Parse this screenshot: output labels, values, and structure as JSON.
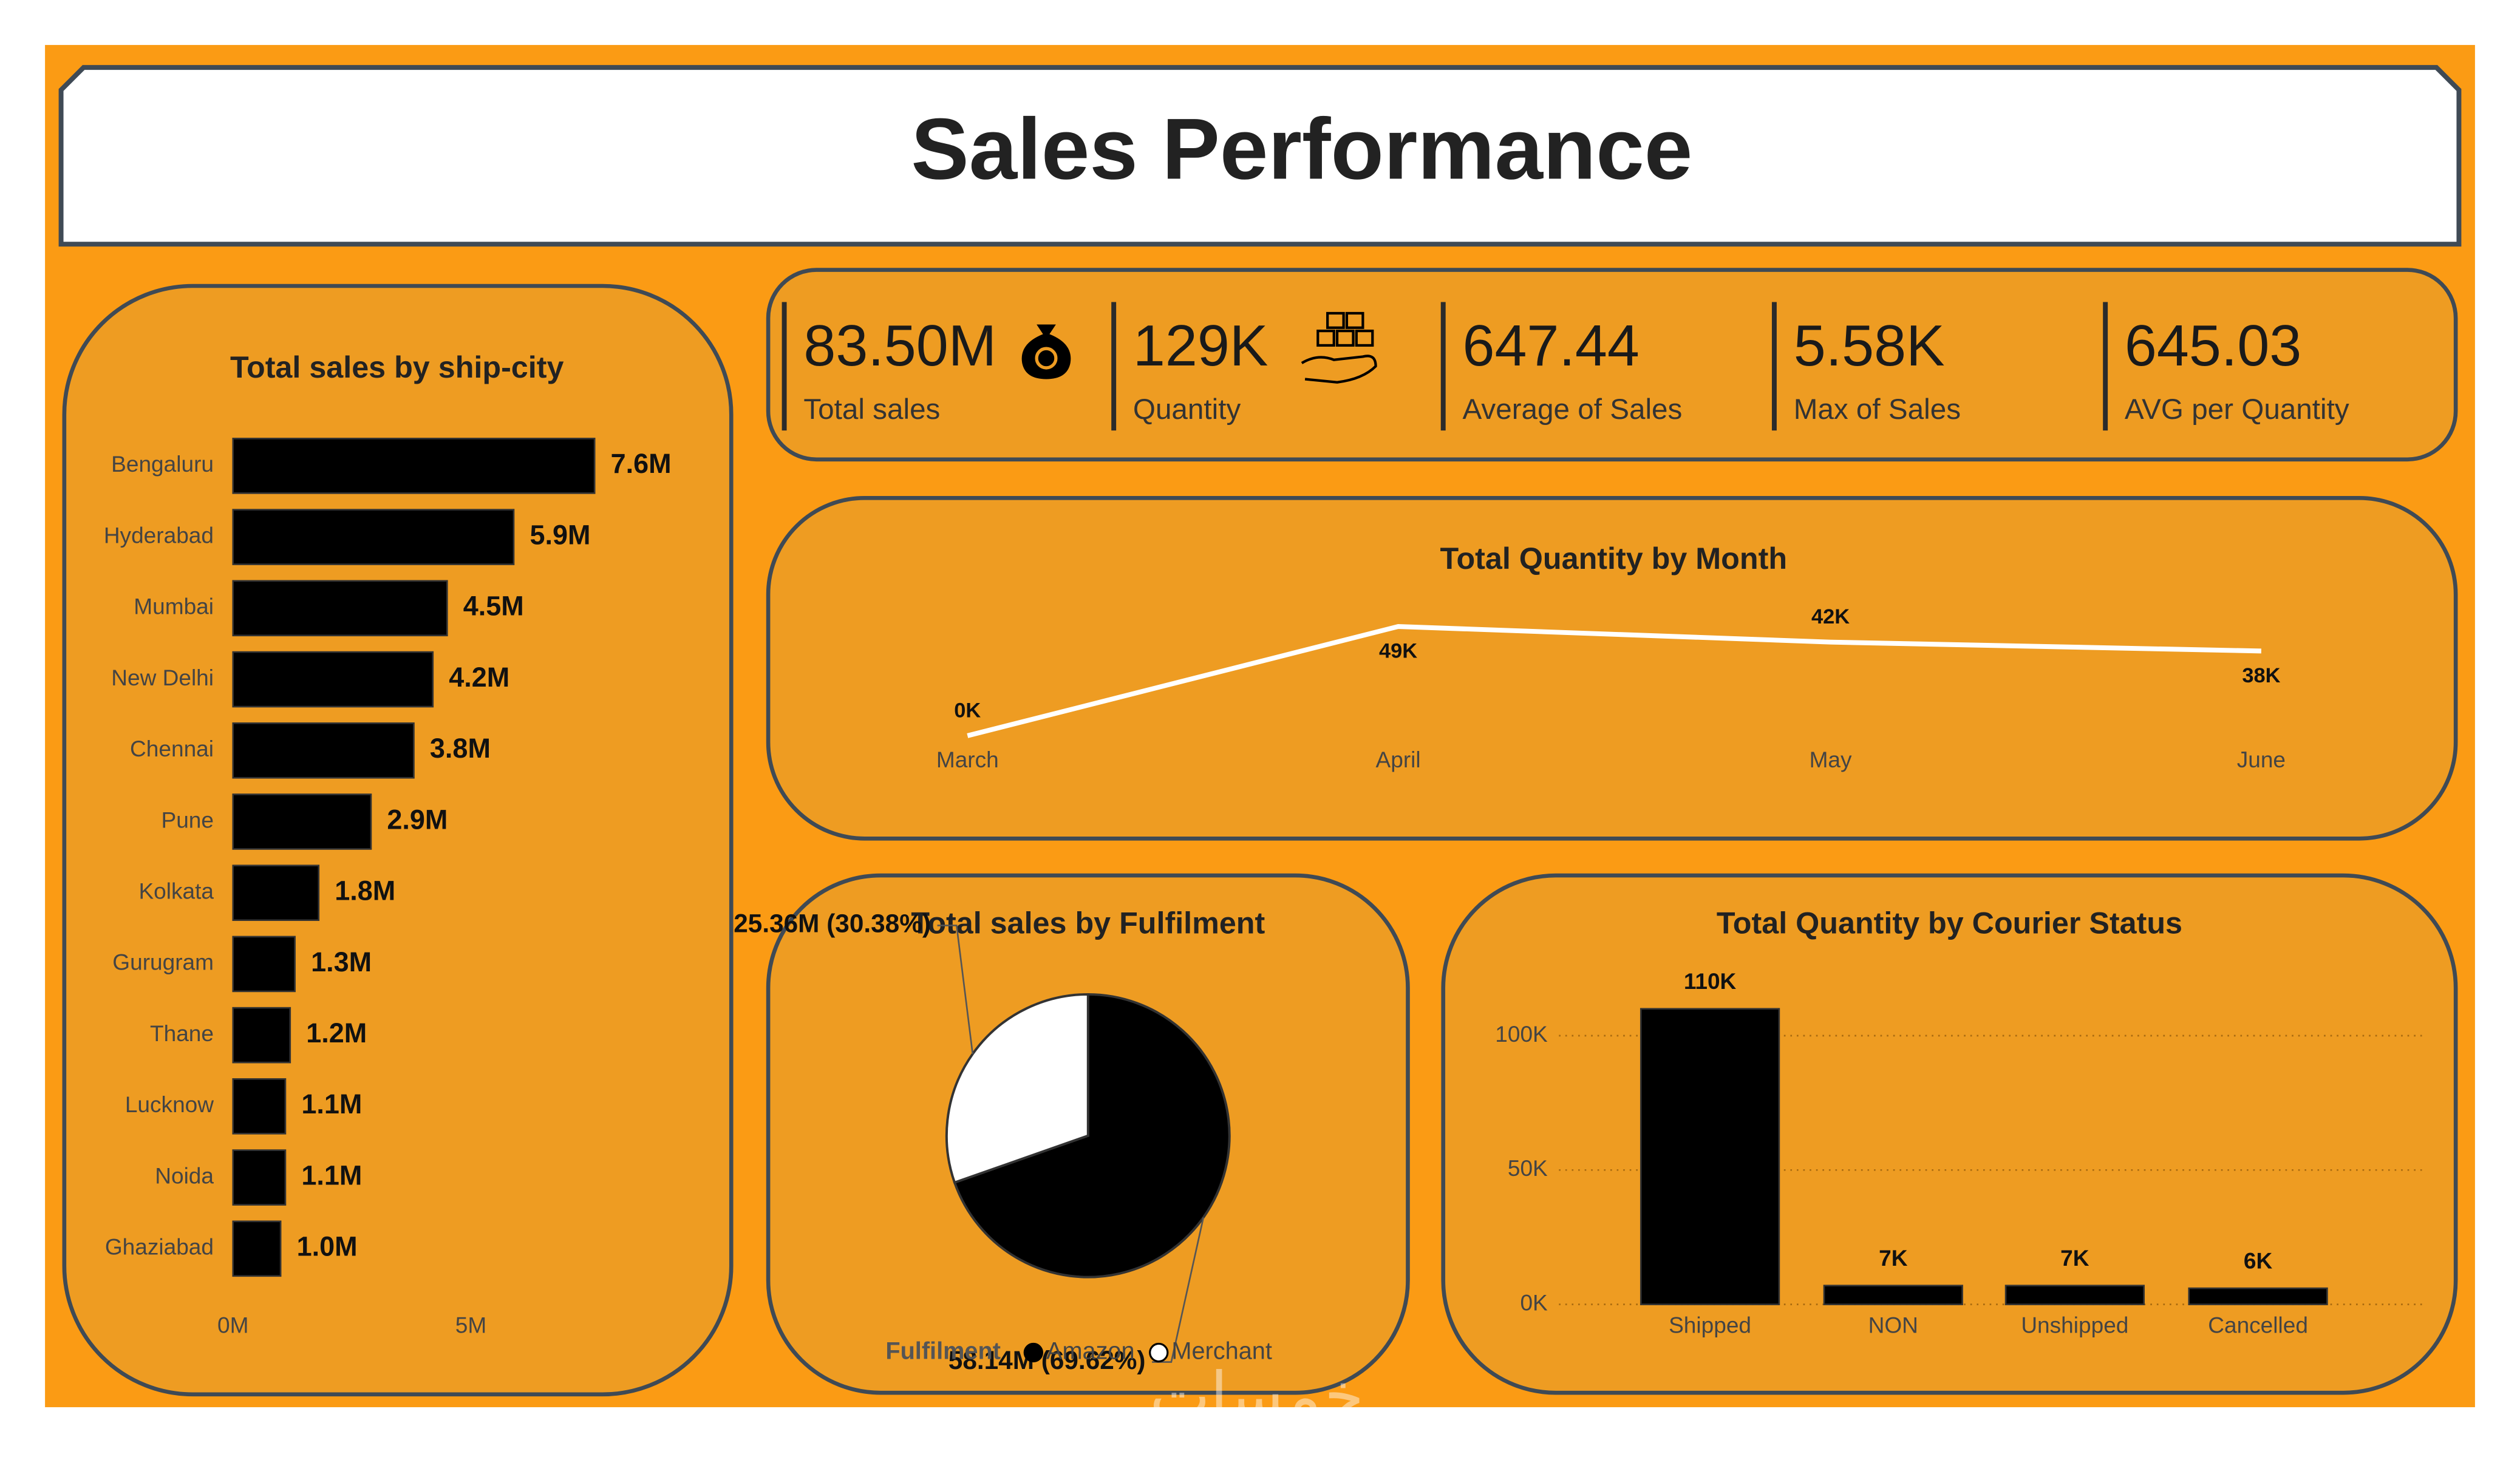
{
  "title": "Sales Performance",
  "kpis": [
    {
      "value": "83.50M",
      "label": "Total sales"
    },
    {
      "value": "129K",
      "label": "Quantity"
    },
    {
      "value": "647.44",
      "label": "Average of Sales"
    },
    {
      "value": "5.58K",
      "label": "Max of Sales"
    },
    {
      "value": "645.03",
      "label": "AVG per Quantity"
    }
  ],
  "watermark": "خمسات",
  "chart_data": [
    {
      "type": "bar",
      "orientation": "horizontal",
      "title": "Total sales by ship-city",
      "categories": [
        "Bengaluru",
        "Hyderabad",
        "Mumbai",
        "New Delhi",
        "Chennai",
        "Pune",
        "Kolkata",
        "Gurugram",
        "Thane",
        "Lucknow",
        "Noida",
        "Ghaziabad"
      ],
      "values": [
        7.6,
        5.9,
        4.5,
        4.2,
        3.8,
        2.9,
        1.8,
        1.3,
        1.2,
        1.1,
        1.1,
        1.0
      ],
      "value_labels": [
        "7.6M",
        "5.9M",
        "4.5M",
        "4.2M",
        "3.8M",
        "2.9M",
        "1.8M",
        "1.3M",
        "1.2M",
        "1.1M",
        "1.1M",
        "1.0M"
      ],
      "color": "#000000",
      "xlim": [
        0,
        10
      ],
      "xticks": [
        {
          "value": 0,
          "label": "0M"
        },
        {
          "value": 5,
          "label": "5M"
        }
      ],
      "grid": false
    },
    {
      "type": "line",
      "title": "Total Quantity by Month",
      "categories": [
        "March",
        "April",
        "May",
        "June"
      ],
      "values": [
        0,
        49,
        42,
        38
      ],
      "value_labels": [
        "0K",
        "49K",
        "42K",
        "38K"
      ],
      "color": "#ffffff"
    },
    {
      "type": "pie",
      "title": "Total sales by Fulfilment",
      "categories": [
        "Amazon",
        "Merchant"
      ],
      "values": [
        58.14,
        25.36
      ],
      "value_labels": [
        "58.14M (69.62%)",
        "25.36M (30.38%)"
      ],
      "colors": [
        "#000000",
        "#ffffff"
      ],
      "legend_title": "Fulfilment"
    },
    {
      "type": "bar",
      "orientation": "vertical",
      "title": "Total Quantity by Courier Status",
      "categories": [
        "Shipped",
        "NON",
        "Unshipped",
        "Cancelled"
      ],
      "values": [
        110,
        7,
        7,
        6
      ],
      "value_labels": [
        "110K",
        "7K",
        "7K",
        "6K"
      ],
      "color": "#000000",
      "ylim": [
        0,
        110
      ],
      "yticks": [
        {
          "value": 0,
          "label": "0K"
        },
        {
          "value": 50,
          "label": "50K"
        },
        {
          "value": 100,
          "label": "100K"
        }
      ],
      "grid": true
    }
  ]
}
